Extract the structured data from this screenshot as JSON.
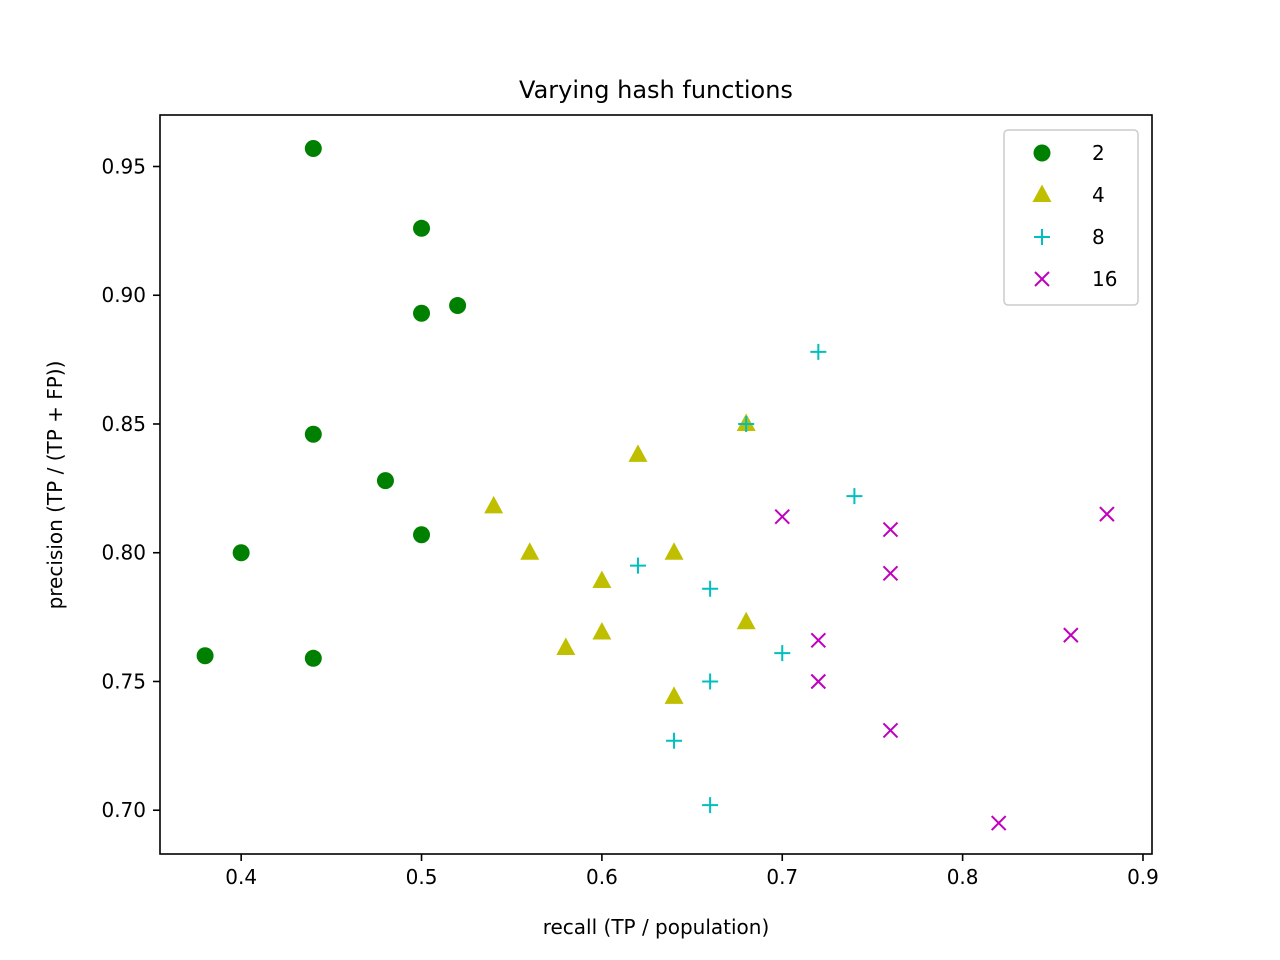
{
  "chart_data": {
    "type": "scatter",
    "title": "Varying hash functions",
    "xlabel": "recall (TP / population)",
    "ylabel": "precision (TP / (TP + FP))",
    "xlim": [
      0.355,
      0.905
    ],
    "ylim": [
      0.683,
      0.97
    ],
    "xticks": [
      0.4,
      0.5,
      0.6,
      0.7,
      0.8,
      0.9
    ],
    "xtick_labels": [
      "0.4",
      "0.5",
      "0.6",
      "0.7",
      "0.8",
      "0.9"
    ],
    "yticks": [
      0.7,
      0.75,
      0.8,
      0.85,
      0.9,
      0.95
    ],
    "ytick_labels": [
      "0.70",
      "0.75",
      "0.80",
      "0.85",
      "0.90",
      "0.95"
    ],
    "grid": false,
    "legend_position": "top-right",
    "series": [
      {
        "name": "2",
        "marker": "circle",
        "color": "#008000",
        "points": [
          {
            "x": 0.44,
            "y": 0.957
          },
          {
            "x": 0.5,
            "y": 0.926
          },
          {
            "x": 0.52,
            "y": 0.896
          },
          {
            "x": 0.5,
            "y": 0.893
          },
          {
            "x": 0.44,
            "y": 0.846
          },
          {
            "x": 0.48,
            "y": 0.828
          },
          {
            "x": 0.5,
            "y": 0.807
          },
          {
            "x": 0.4,
            "y": 0.8
          },
          {
            "x": 0.38,
            "y": 0.76
          },
          {
            "x": 0.44,
            "y": 0.759
          }
        ]
      },
      {
        "name": "4",
        "marker": "triangle",
        "color": "#bfbf00",
        "points": [
          {
            "x": 0.68,
            "y": 0.85
          },
          {
            "x": 0.62,
            "y": 0.838
          },
          {
            "x": 0.54,
            "y": 0.818
          },
          {
            "x": 0.56,
            "y": 0.8
          },
          {
            "x": 0.64,
            "y": 0.8
          },
          {
            "x": 0.6,
            "y": 0.789
          },
          {
            "x": 0.68,
            "y": 0.773
          },
          {
            "x": 0.6,
            "y": 0.769
          },
          {
            "x": 0.58,
            "y": 0.763
          },
          {
            "x": 0.64,
            "y": 0.744
          }
        ]
      },
      {
        "name": "8",
        "marker": "plus",
        "color": "#00bfbf",
        "points": [
          {
            "x": 0.72,
            "y": 0.878
          },
          {
            "x": 0.68,
            "y": 0.85
          },
          {
            "x": 0.74,
            "y": 0.822
          },
          {
            "x": 0.62,
            "y": 0.795
          },
          {
            "x": 0.66,
            "y": 0.786
          },
          {
            "x": 0.7,
            "y": 0.761
          },
          {
            "x": 0.66,
            "y": 0.75
          },
          {
            "x": 0.64,
            "y": 0.727
          },
          {
            "x": 0.66,
            "y": 0.702
          }
        ]
      },
      {
        "name": "16",
        "marker": "x",
        "color": "#bf00bf",
        "points": [
          {
            "x": 0.88,
            "y": 0.815
          },
          {
            "x": 0.7,
            "y": 0.814
          },
          {
            "x": 0.76,
            "y": 0.809
          },
          {
            "x": 0.76,
            "y": 0.792
          },
          {
            "x": 0.86,
            "y": 0.768
          },
          {
            "x": 0.72,
            "y": 0.766
          },
          {
            "x": 0.72,
            "y": 0.75
          },
          {
            "x": 0.76,
            "y": 0.731
          },
          {
            "x": 0.82,
            "y": 0.695
          }
        ]
      }
    ]
  }
}
